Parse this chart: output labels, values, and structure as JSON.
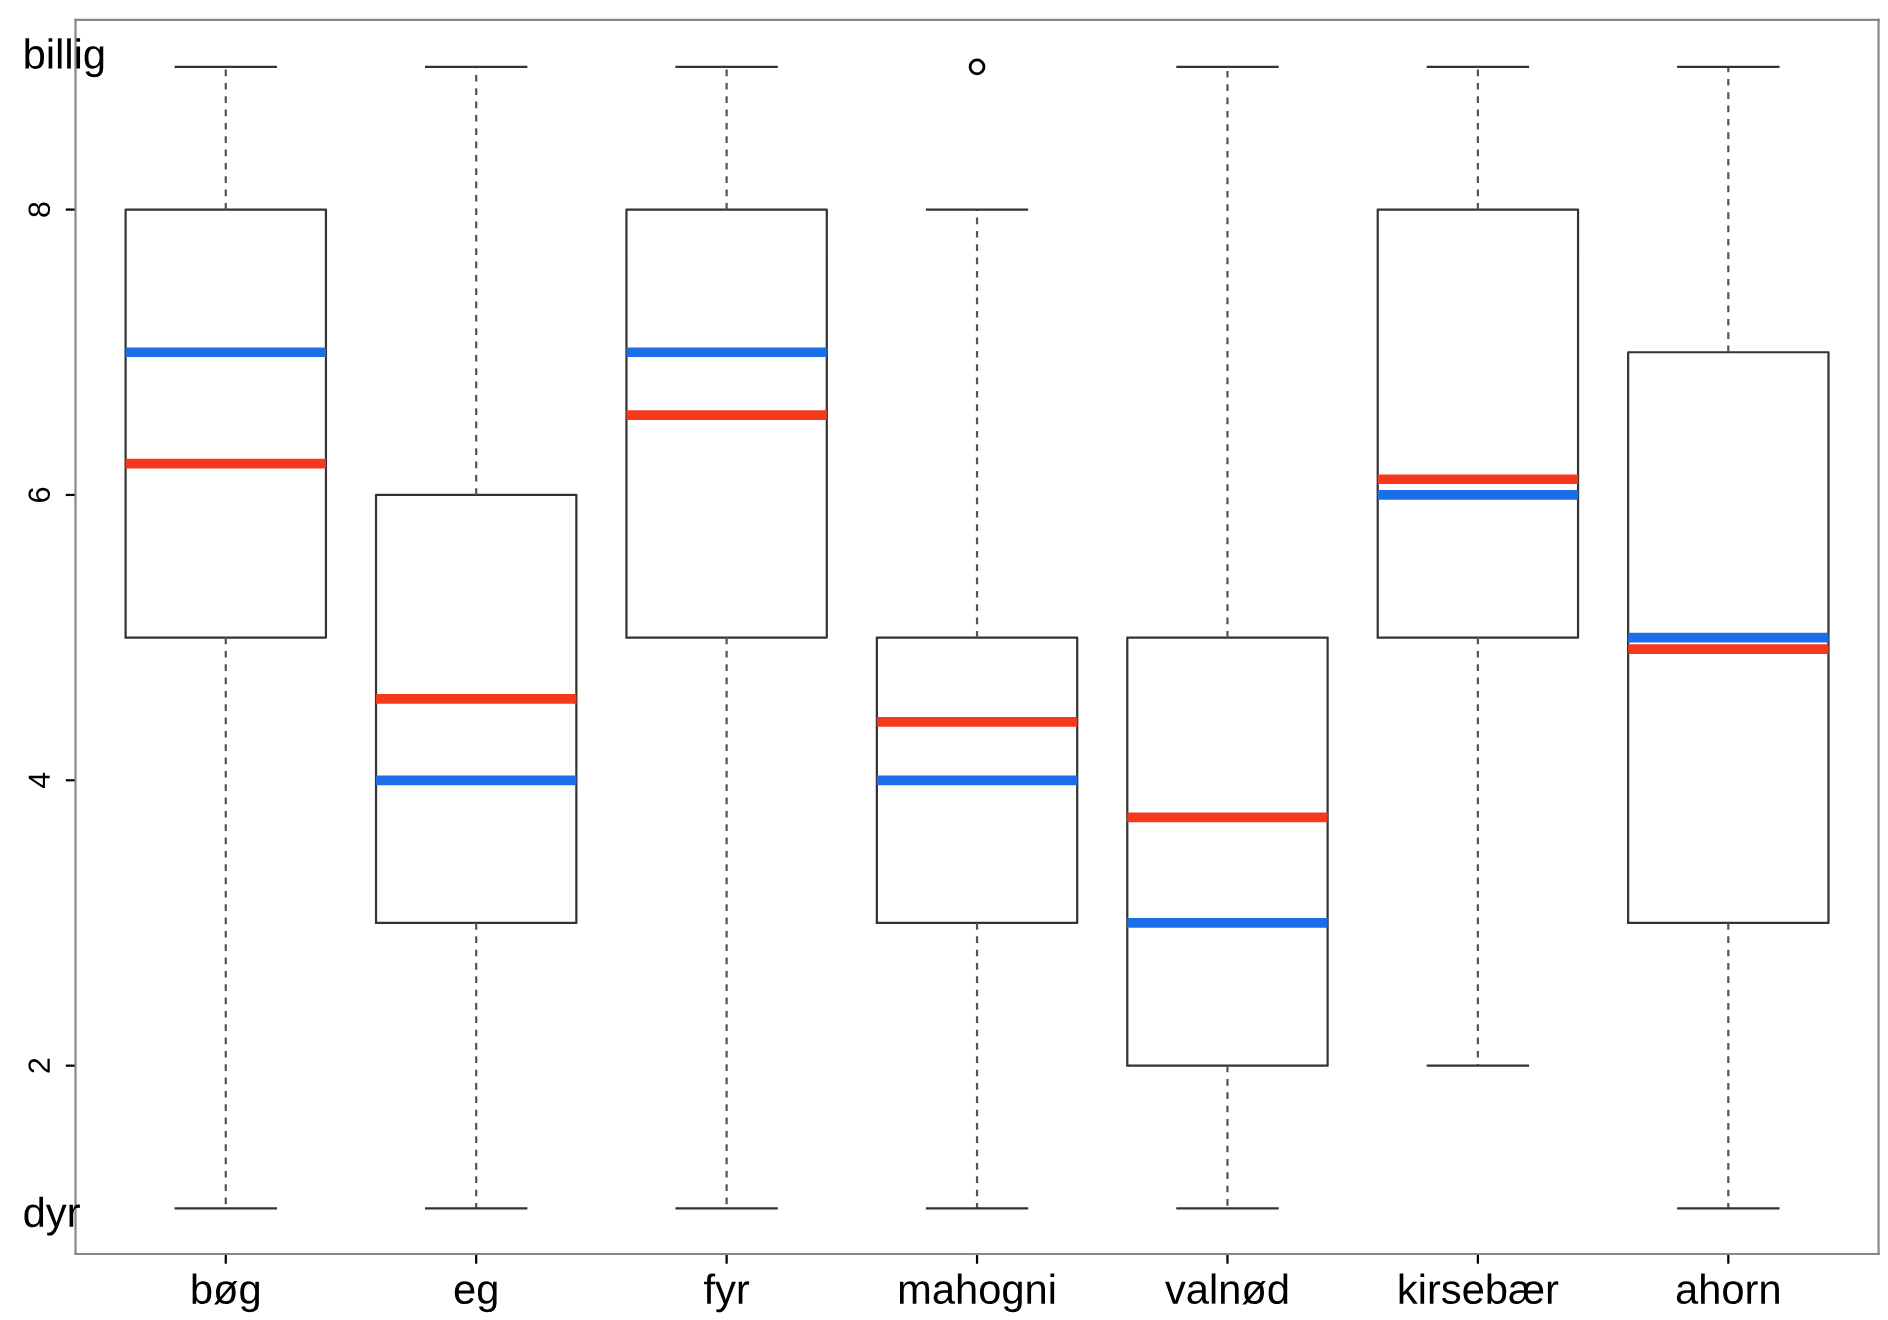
{
  "chart_data": {
    "type": "box",
    "categories": [
      "bøg",
      "eg",
      "fyr",
      "mahogni",
      "valnød",
      "kirsebær",
      "ahorn"
    ],
    "boxes": [
      {
        "low": 1,
        "q1": 5,
        "median": 7,
        "q3": 8,
        "high": 9,
        "mean": 6.22
      },
      {
        "low": 1,
        "q1": 3,
        "median": 4,
        "q3": 6,
        "high": 9,
        "mean": 4.57
      },
      {
        "low": 1,
        "q1": 5,
        "median": 7,
        "q3": 8,
        "high": 9,
        "mean": 6.56
      },
      {
        "low": 1,
        "q1": 3,
        "median": 4,
        "q3": 5,
        "high": 8,
        "mean": 4.41,
        "outliers": [
          9
        ]
      },
      {
        "low": 1,
        "q1": 2,
        "median": 3,
        "q3": 5,
        "high": 9,
        "mean": 3.74
      },
      {
        "low": 2,
        "q1": 5,
        "median": 6,
        "q3": 8,
        "high": 9,
        "mean": 6.11
      },
      {
        "low": 1,
        "q1": 3,
        "median": 5,
        "q3": 7,
        "high": 9,
        "mean": 4.92
      }
    ],
    "annotations": [
      "billig",
      "dyr"
    ],
    "ylim": [
      0.68,
      9.33
    ],
    "yticks": [
      2,
      4,
      6,
      8
    ],
    "grid": false
  }
}
